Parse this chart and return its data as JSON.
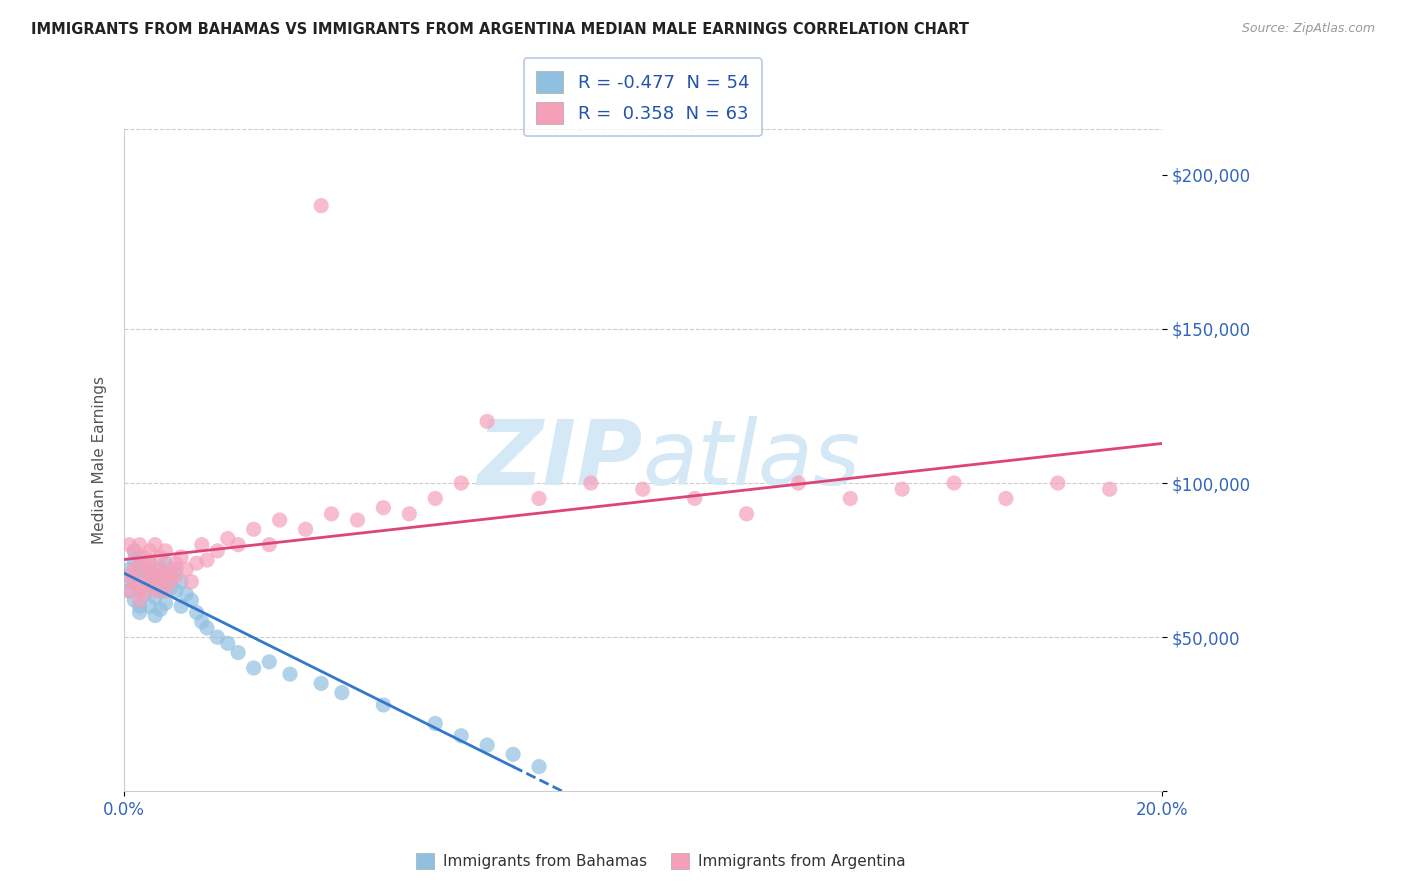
{
  "title": "IMMIGRANTS FROM BAHAMAS VS IMMIGRANTS FROM ARGENTINA MEDIAN MALE EARNINGS CORRELATION CHART",
  "source": "Source: ZipAtlas.com",
  "ylabel": "Median Male Earnings",
  "r_bahamas": -0.477,
  "n_bahamas": 54,
  "r_argentina": 0.358,
  "n_argentina": 63,
  "xmin": 0.0,
  "xmax": 0.2,
  "ymin": 0,
  "ymax": 215000,
  "color_bahamas": "#90C0E0",
  "color_argentina": "#F5A0B8",
  "color_bahamas_line": "#3377CC",
  "color_argentina_line": "#DD4477",
  "background_color": "#FFFFFF",
  "grid_color": "#CCCCCC",
  "title_color": "#222222",
  "axis_tick_color": "#3366BB",
  "legend_text_color": "#2255AA",
  "watermark_color": "#D5E8F5",
  "bahamas_x": [
    0.001,
    0.001,
    0.001,
    0.002,
    0.002,
    0.002,
    0.002,
    0.003,
    0.003,
    0.003,
    0.003,
    0.003,
    0.004,
    0.004,
    0.004,
    0.005,
    0.005,
    0.005,
    0.005,
    0.006,
    0.006,
    0.006,
    0.006,
    0.007,
    0.007,
    0.007,
    0.008,
    0.008,
    0.008,
    0.009,
    0.009,
    0.01,
    0.01,
    0.011,
    0.011,
    0.012,
    0.013,
    0.014,
    0.015,
    0.016,
    0.018,
    0.02,
    0.022,
    0.025,
    0.028,
    0.032,
    0.038,
    0.042,
    0.05,
    0.06,
    0.065,
    0.07,
    0.075,
    0.08
  ],
  "bahamas_y": [
    68000,
    72000,
    65000,
    70000,
    75000,
    62000,
    78000,
    66000,
    73000,
    60000,
    76000,
    58000,
    69000,
    72000,
    64000,
    71000,
    67000,
    74000,
    60000,
    68000,
    63000,
    70000,
    57000,
    65000,
    72000,
    59000,
    68000,
    74000,
    61000,
    66000,
    70000,
    65000,
    72000,
    68000,
    60000,
    64000,
    62000,
    58000,
    55000,
    53000,
    50000,
    48000,
    45000,
    40000,
    42000,
    38000,
    35000,
    32000,
    28000,
    22000,
    18000,
    15000,
    12000,
    8000
  ],
  "argentina_x": [
    0.001,
    0.001,
    0.001,
    0.002,
    0.002,
    0.002,
    0.003,
    0.003,
    0.003,
    0.003,
    0.004,
    0.004,
    0.004,
    0.005,
    0.005,
    0.005,
    0.005,
    0.006,
    0.006,
    0.006,
    0.007,
    0.007,
    0.007,
    0.008,
    0.008,
    0.008,
    0.009,
    0.009,
    0.01,
    0.01,
    0.011,
    0.012,
    0.013,
    0.014,
    0.015,
    0.016,
    0.018,
    0.02,
    0.022,
    0.025,
    0.028,
    0.03,
    0.035,
    0.04,
    0.045,
    0.05,
    0.055,
    0.06,
    0.065,
    0.07,
    0.08,
    0.09,
    0.1,
    0.11,
    0.12,
    0.13,
    0.14,
    0.15,
    0.16,
    0.17,
    0.18,
    0.19,
    0.038
  ],
  "argentina_y": [
    70000,
    65000,
    80000,
    72000,
    68000,
    78000,
    74000,
    66000,
    80000,
    62000,
    76000,
    70000,
    65000,
    72000,
    78000,
    68000,
    74000,
    70000,
    65000,
    80000,
    72000,
    68000,
    76000,
    70000,
    65000,
    78000,
    72000,
    68000,
    74000,
    70000,
    76000,
    72000,
    68000,
    74000,
    80000,
    75000,
    78000,
    82000,
    80000,
    85000,
    80000,
    88000,
    85000,
    90000,
    88000,
    92000,
    90000,
    95000,
    100000,
    120000,
    95000,
    100000,
    98000,
    95000,
    90000,
    100000,
    95000,
    98000,
    100000,
    95000,
    100000,
    98000,
    190000
  ]
}
